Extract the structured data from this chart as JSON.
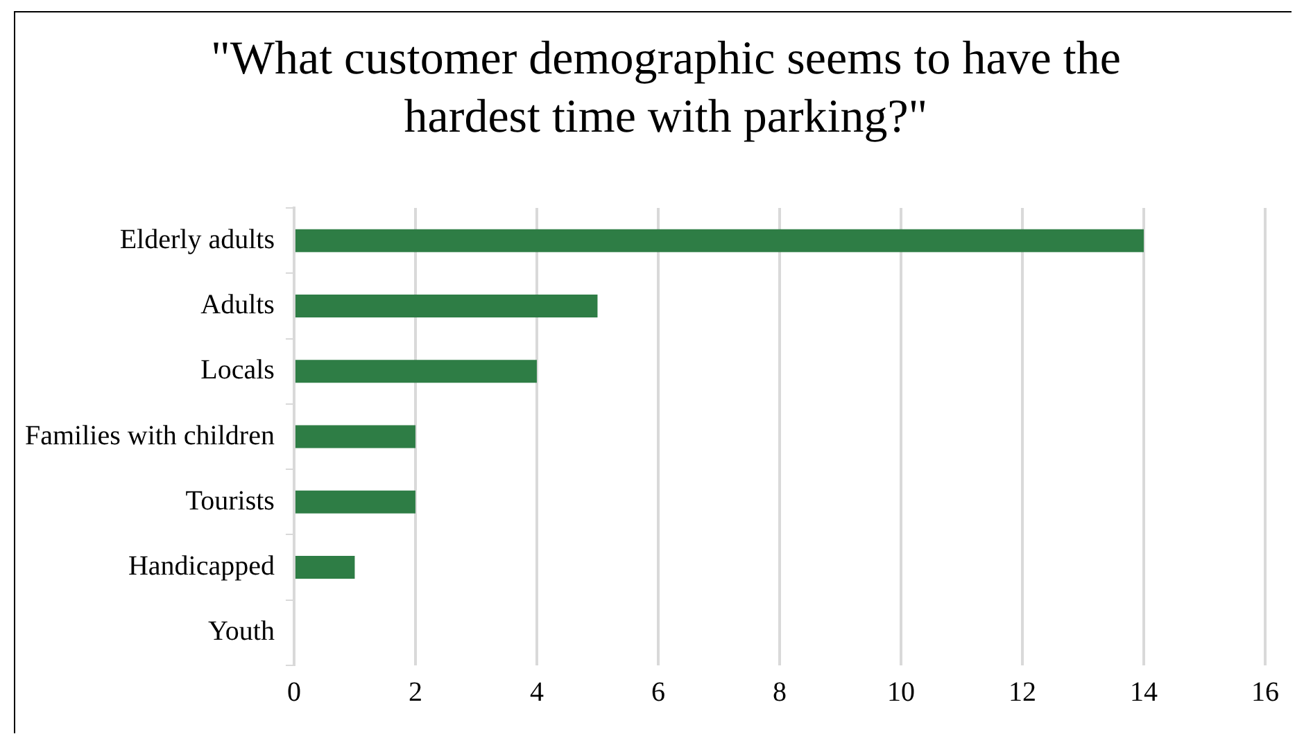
{
  "chart_data": {
    "type": "bar",
    "orientation": "horizontal",
    "title": "\"What customer demographic seems to have the hardest time with parking?\"",
    "categories": [
      "Elderly adults",
      "Adults",
      "Locals",
      "Families with children",
      "Tourists",
      "Handicapped",
      "Youth"
    ],
    "values": [
      14,
      5,
      4,
      2,
      2,
      1,
      0
    ],
    "color": "#2e7d45",
    "xlim": [
      0,
      16
    ],
    "xticks": [
      0,
      2,
      4,
      6,
      8,
      10,
      12,
      14,
      16
    ],
    "grid": "x",
    "legend": false
  }
}
